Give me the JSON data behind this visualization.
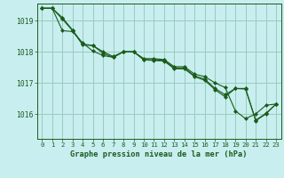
{
  "background_color": "#c8eef0",
  "grid_color": "#99ccbb",
  "line_color": "#1a5c1a",
  "marker_color": "#1a5c1a",
  "title": "Graphe pression niveau de la mer (hPa)",
  "xlim": [
    -0.5,
    23.5
  ],
  "ylim": [
    1015.2,
    1019.55
  ],
  "yticks": [
    1016,
    1017,
    1018,
    1019
  ],
  "xticks": [
    0,
    1,
    2,
    3,
    4,
    5,
    6,
    7,
    8,
    9,
    10,
    11,
    12,
    13,
    14,
    15,
    16,
    17,
    18,
    19,
    20,
    21,
    22,
    23
  ],
  "series": [
    [
      1019.4,
      1019.4,
      1019.1,
      1018.7,
      1018.25,
      1018.2,
      1018.0,
      1017.85,
      1018.0,
      1018.0,
      1017.78,
      1017.78,
      1017.75,
      1017.52,
      1017.52,
      1017.28,
      1017.2,
      1017.0,
      1016.85,
      1016.1,
      1015.85,
      1016.0,
      1016.28,
      1016.32
    ],
    [
      1019.4,
      1019.4,
      1019.05,
      1018.68,
      1018.22,
      1018.2,
      1017.95,
      1017.82,
      1018.0,
      1018.0,
      1017.75,
      1017.74,
      1017.72,
      1017.48,
      1017.48,
      1017.22,
      1017.12,
      1016.82,
      1016.62,
      1016.82,
      1016.82,
      1015.8,
      1016.02,
      1016.32
    ],
    [
      1019.4,
      1019.4,
      1018.68,
      1018.65,
      1018.28,
      1018.02,
      1017.88,
      1017.82,
      1018.0,
      1018.0,
      1017.74,
      1017.72,
      1017.7,
      1017.45,
      1017.45,
      1017.2,
      1017.08,
      1016.78,
      1016.55,
      1016.82,
      1016.8,
      1015.78,
      1016.0,
      1016.32
    ]
  ]
}
